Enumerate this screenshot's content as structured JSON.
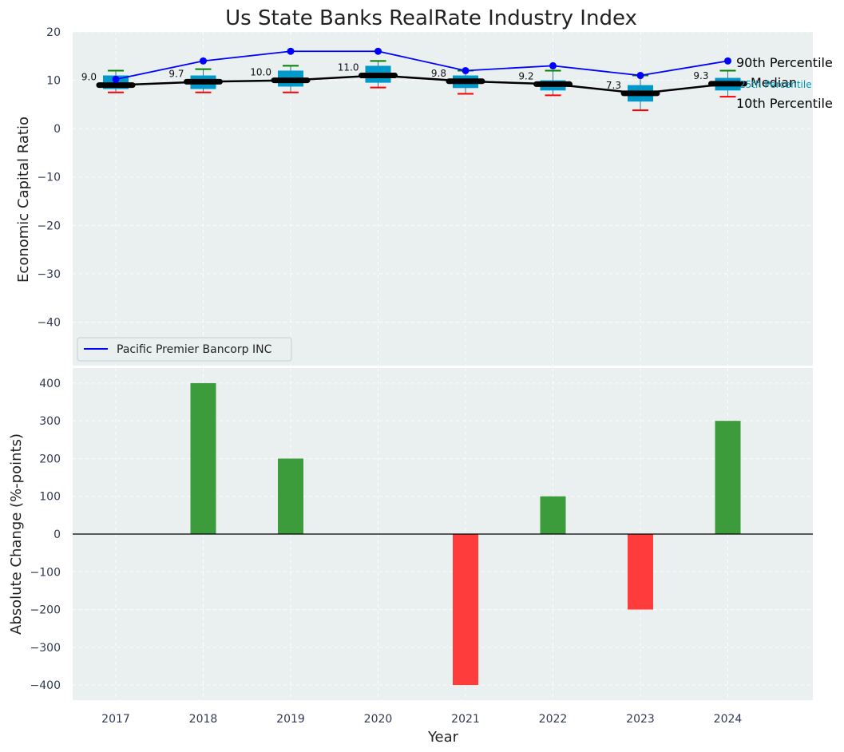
{
  "title": "Us State Banks RealRate Industry Index",
  "colors": {
    "panel_bg": "#eaeff0",
    "company_line": "#0000ff",
    "median_line": "#000000",
    "box_fill": "#0099cc",
    "whisker_top": "#008000",
    "whisker_bottom": "#ff0000",
    "positive_bar": "#3c9c3c",
    "negative_bar": "#ff3c3c",
    "p25_label": "#0099bb"
  },
  "chart_data": [
    {
      "type": "box",
      "ylabel": "Economic Capital Ratio",
      "ylim": [
        -49,
        20
      ],
      "yticks": [
        20,
        10,
        0,
        -10,
        -20,
        -30,
        -40
      ],
      "grid": true,
      "categories": [
        "2017",
        "2018",
        "2019",
        "2020",
        "2021",
        "2022",
        "2023",
        "2024"
      ],
      "p10": [
        7.5,
        7.5,
        7.5,
        8.5,
        7.2,
        6.9,
        3.8,
        6.6
      ],
      "p25": [
        8.2,
        8.2,
        8.7,
        9.5,
        8.4,
        7.9,
        5.6,
        7.9
      ],
      "median": [
        9.0,
        9.7,
        10.0,
        11.0,
        9.8,
        9.2,
        7.3,
        9.3
      ],
      "p75": [
        11.0,
        11.0,
        12.0,
        13.0,
        11.0,
        10.0,
        9.0,
        10.5
      ],
      "p90": [
        12.0,
        12.3,
        13.0,
        14.0,
        12.0,
        12.0,
        11.0,
        12.0
      ],
      "median_labels": [
        "9.0",
        "9.7",
        "10.0",
        "11.0",
        "9.8",
        "9.2",
        "7.3",
        "9.3"
      ],
      "series": [
        {
          "name": "Pacific Premier Bancorp INC",
          "values": [
            10.2,
            14.0,
            16.0,
            16.0,
            12.0,
            13.0,
            11.0,
            14.0
          ]
        }
      ],
      "percentile_labels": {
        "p90": "90th Percentile",
        "median": "Median",
        "p25": "25th Percentile",
        "p10": "10th Percentile"
      },
      "legend": {
        "placement": "lower-left",
        "entries": [
          "Pacific Premier Bancorp INC"
        ]
      }
    },
    {
      "type": "bar",
      "ylabel": "Absolute Change (%-points)",
      "xlabel": "Year",
      "ylim": [
        -440,
        440
      ],
      "yticks": [
        400,
        300,
        200,
        100,
        0,
        -100,
        -200,
        -300,
        -400
      ],
      "grid": true,
      "categories": [
        "2017",
        "2018",
        "2019",
        "2020",
        "2021",
        "2022",
        "2023",
        "2024"
      ],
      "values": [
        0,
        400,
        200,
        0,
        -400,
        100,
        -200,
        300
      ]
    }
  ]
}
